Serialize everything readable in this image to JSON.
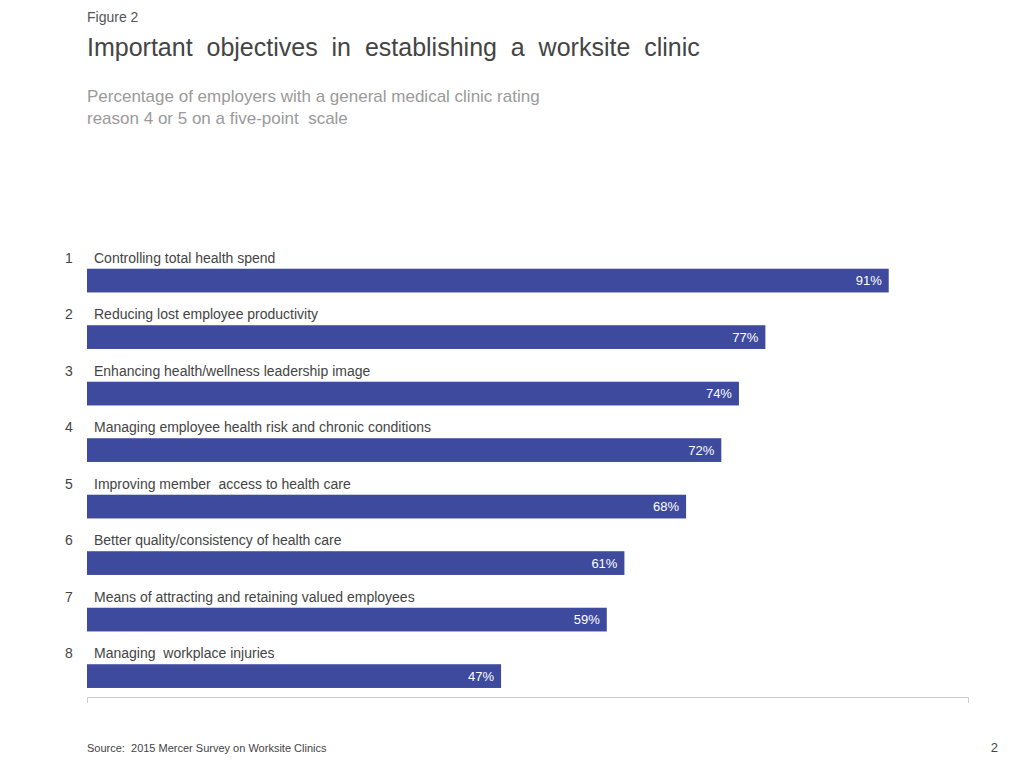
{
  "chart_data": {
    "type": "bar",
    "orientation": "horizontal",
    "title": "Important  objectives  in  establishing  a  worksite  clinic",
    "subtitle": [
      "Percentage of employers with a general medical clinic rating",
      "reason 4 or 5 on a five-point  scale"
    ],
    "annotations": [
      "Figure 2",
      "Source:  2015 Mercer Survey on Worksite Clinics",
      "2"
    ],
    "categories": [
      "Controlling total health spend",
      "Reducing lost employee productivity",
      "Enhancing health/wellness leadership image",
      "Managing employee health risk and chronic conditions",
      "Improving member  access to health care",
      "Better quality/consistency of health care",
      "Means of attracting and retaining valued employees",
      "Managing  workplace injuries"
    ],
    "ranks": [
      1,
      2,
      3,
      4,
      5,
      6,
      7,
      8
    ],
    "values": [
      91,
      77,
      74,
      72,
      68,
      61,
      59,
      47
    ],
    "value_labels": [
      "91%",
      "77%",
      "74%",
      "72%",
      "68%",
      "61%",
      "59%",
      "47%"
    ],
    "data_labels": true,
    "color": "#3d4a9e",
    "xlim": [
      0,
      100
    ],
    "grid": false,
    "tick_labels": false
  }
}
